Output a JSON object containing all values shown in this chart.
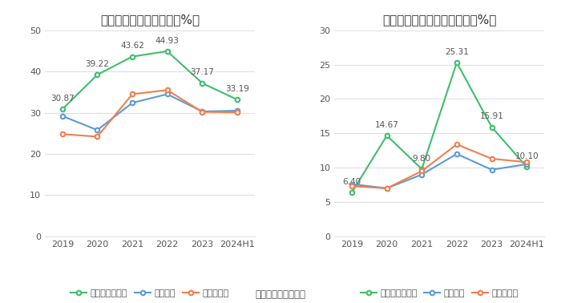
{
  "chart1": {
    "title": "近年来资产负债率情况（%）",
    "x_labels": [
      "2019",
      "2020",
      "2021",
      "2022",
      "2023",
      "2024H1"
    ],
    "series": [
      {
        "name": "公司资产负债率",
        "values": [
          30.87,
          39.22,
          43.62,
          44.93,
          37.17,
          33.19
        ],
        "color": "#3dbf6b",
        "marker": "o"
      },
      {
        "name": "行业均值",
        "values": [
          29.2,
          25.8,
          32.4,
          34.5,
          30.3,
          30.5
        ],
        "color": "#5b9bd5",
        "marker": "o"
      },
      {
        "name": "行业中位数",
        "values": [
          24.8,
          24.2,
          34.5,
          35.5,
          30.2,
          30.1
        ],
        "color": "#f07f4f",
        "marker": "o"
      }
    ],
    "ylim": [
      0,
      50
    ],
    "yticks": [
      0,
      10,
      20,
      30,
      40,
      50
    ],
    "label_series_idx": 0,
    "label_values": [
      "30.87",
      "39.22",
      "43.62",
      "44.93",
      "37.17",
      "33.19"
    ]
  },
  "chart2": {
    "title": "近年来有息资产负债率情况（%）",
    "x_labels": [
      "2019",
      "2020",
      "2021",
      "2022",
      "2023",
      "2024H1"
    ],
    "series": [
      {
        "name": "有息资产负债率",
        "values": [
          6.4,
          14.67,
          9.8,
          25.31,
          15.91,
          10.1
        ],
        "color": "#3dbf6b",
        "marker": "o"
      },
      {
        "name": "行业均值",
        "values": [
          7.6,
          7.0,
          9.0,
          12.0,
          9.7,
          10.5
        ],
        "color": "#5b9bd5",
        "marker": "o"
      },
      {
        "name": "行业中位数",
        "values": [
          7.3,
          7.0,
          9.5,
          13.4,
          11.3,
          10.8
        ],
        "color": "#f07f4f",
        "marker": "o"
      }
    ],
    "ylim": [
      0,
      30
    ],
    "yticks": [
      0,
      5,
      10,
      15,
      20,
      25,
      30
    ],
    "label_series_idx": 0,
    "label_values": [
      "6.40",
      "14.67",
      "9.80",
      "25.31",
      "15.91",
      "10.10"
    ]
  },
  "footer": "数据来源：恒生聚源",
  "bg_color": "#ffffff",
  "grid_color": "#e0e0e0",
  "text_color": "#555555",
  "title_fontsize": 11,
  "tick_fontsize": 8,
  "legend_fontsize": 8,
  "annotation_fontsize": 7.5
}
